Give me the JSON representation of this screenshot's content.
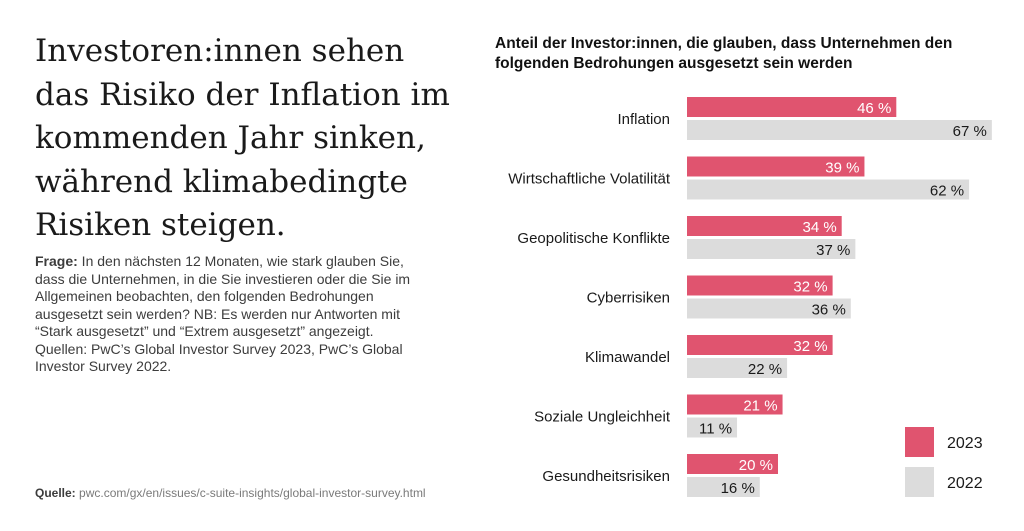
{
  "headline": "Investoren:innen sehen das Risiko der Inflation im kommenden Jahr sinken, während klimabedingte Risiken steigen.",
  "question": {
    "label": "Frage:",
    "text": " In den nächsten 12 Monaten, wie stark glauben Sie, dass die Unternehmen, in die Sie investieren oder die Sie im Allgemeinen beobachten, den folgenden Bedrohungen ausgesetzt sein werden? NB: Es werden nur Antworten mit “Stark ausgesetzt” und “Extrem ausgesetzt” angezeigt. Quellen: PwC’s Global Investor Survey 2023, PwC’s Global Investor Survey 2022."
  },
  "source": {
    "label": "Quelle:",
    "url": "pwc.com/gx/en/issues/c-suite-insights/global-investor-survey.html"
  },
  "colors": {
    "series_2023": "#e0546f",
    "series_2022": "#dcdcdc"
  },
  "chart_data": {
    "type": "bar",
    "orientation": "horizontal",
    "title": "Anteil der Investor:innen, die glauben, dass Unternehmen den folgenden Bedrohungen ausgesetzt sein werden",
    "categories": [
      "Inflation",
      "Wirtschaftliche Volatilität",
      "Geopolitische Konflikte",
      "Cyberrisiken",
      "Klimawandel",
      "Soziale Ungleichheit",
      "Gesundheitsrisiken"
    ],
    "series": [
      {
        "name": "2023",
        "values": [
          46,
          39,
          34,
          32,
          32,
          21,
          20
        ],
        "labels": [
          "46 %",
          "39 %",
          "34 %",
          "32 %",
          "32 %",
          "21 %",
          "20 %"
        ]
      },
      {
        "name": "2022",
        "values": [
          67,
          62,
          37,
          36,
          22,
          11,
          16
        ],
        "labels": [
          "67 %",
          "62 %",
          "37 %",
          "36 %",
          "22 %",
          "11 %",
          "16 %"
        ]
      }
    ],
    "xlim": [
      0,
      100
    ],
    "grid": false,
    "legend": "bottom-right"
  }
}
